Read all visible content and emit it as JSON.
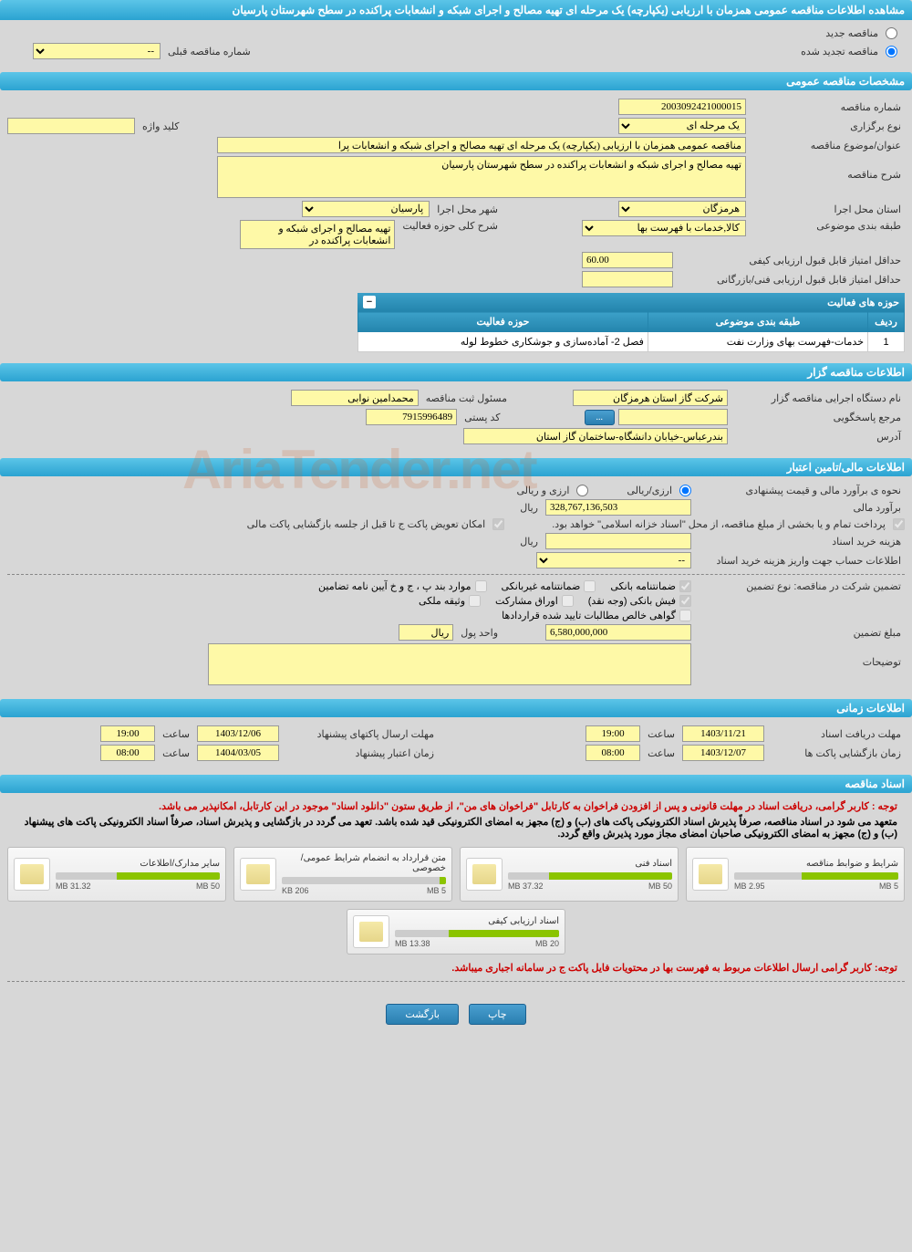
{
  "header": {
    "title": "مشاهده اطلاعات مناقصه عمومی همزمان با ارزیابی (یکپارچه) یک مرحله ای تهیه مصالح و اجرای شبکه و انشعابات پراکنده در سطح شهرستان پارسیان"
  },
  "tender_mode": {
    "new_label": "مناقصه جدید",
    "renewed_label": "مناقصه تجدید شده",
    "prev_number_label": "شماره مناقصه قبلی",
    "prev_number_value": "--"
  },
  "general": {
    "section_title": "مشخصات مناقصه عمومی",
    "tender_number_label": "شماره مناقصه",
    "tender_number": "2003092421000015",
    "hold_type_label": "نوع برگزاری",
    "hold_type": "یک مرحله ای",
    "keyword_label": "کلید واژه",
    "keyword": "",
    "subject_label": "عنوان/موضوع مناقصه",
    "subject": "مناقصه عمومی همزمان با ارزیابی (یکپارچه) یک مرحله ای تهیه مصالح و اجرای شبکه و انشعابات پرا",
    "desc_label": "شرح مناقصه",
    "desc": "تهیه مصالح و اجرای شبکه و انشعابات پراکنده در سطح شهرستان پارسیان",
    "province_label": "استان محل اجرا",
    "province": "هرمزگان",
    "city_label": "شهر محل اجرا",
    "city": "پارسیان",
    "category_label": "طبقه بندی موضوعی",
    "category": "کالا,خدمات با فهرست بها",
    "activity_desc_label": "شرح کلی حوزه فعالیت",
    "activity_desc": "تهیه مصالح و اجرای شبکه و انشعابات پراکنده در",
    "min_quality_label": "حداقل امتیاز قابل قبول ارزیابی کیفی",
    "min_quality": "60.00",
    "min_tech_label": "حداقل امتیاز قابل قبول ارزیابی فنی/بازرگانی",
    "min_tech": "",
    "activities_title": "حوزه های فعالیت",
    "activities_cols": {
      "row": "ردیف",
      "cat": "طبقه بندی موضوعی",
      "area": "حوزه فعالیت"
    },
    "activities_rows": [
      {
        "n": "1",
        "cat": "خدمات-فهرست بهای وزارت نفت",
        "area": "فصل 2- آماده‌سازی و جوشکاری خطوط لوله"
      }
    ]
  },
  "org": {
    "section_title": "اطلاعات مناقصه گزار",
    "org_name_label": "نام دستگاه اجرایی مناقصه گزار",
    "org_name": "شرکت گاز استان هرمزگان",
    "registrar_label": "مسئول ثبت مناقصه",
    "registrar": "محمدامین نوابی",
    "accountability_label": "مرجع پاسخگویی",
    "accountability": "",
    "postal_label": "کد پستی",
    "postal": "7915996489",
    "address_label": "آدرس",
    "address": "بندرعباس-خیابان دانشگاه-ساختمان گاز استان",
    "more_btn": "..."
  },
  "financial": {
    "section_title": "اطلاعات مالی/تامین اعتبار",
    "price_method_label": "نحوه ی برآورد مالی و قیمت پیشنهادی",
    "opt_rial": "ارزی/ریالی",
    "opt_other": "ارزی و ریالی",
    "estimate_label": "برآورد مالی",
    "estimate": "328,767,136,503",
    "estimate_unit": "ریال",
    "payment_note": "پرداخت تمام و یا بخشی از مبلغ مناقصه، از محل \"اسناد خزانه اسلامی\" خواهد بود.",
    "swap_note": "امکان تعویض پاکت ج تا قبل از جلسه بازگشایی پاکت مالی",
    "doc_cost_label": "هزینه خرید اسناد",
    "doc_cost_unit": "ریال",
    "account_label": "اطلاعات حساب جهت واریز هزینه خرید اسناد",
    "account_value": "--",
    "guarantee_type_label": "تضمین شرکت در مناقصه:   نوع تضمین",
    "chk_bank_guarantee": "ضمانتنامه بانکی",
    "chk_nonbank": "ضمانتنامه غیربانکی",
    "chk_clauses": "موارد بند پ ، ج و خ آیین نامه تضامین",
    "chk_fish": "فیش بانکی (وجه نقد)",
    "chk_shares": "اوراق مشارکت",
    "chk_property": "وثیقه ملکی",
    "chk_receivables": "گواهی خالص مطالبات تایید شده قراردادها",
    "guarantee_amount_label": "مبلغ تضمین",
    "guarantee_amount": "6,580,000,000",
    "currency_label": "واحد پول",
    "currency": "ریال",
    "notes_label": "توضیحات",
    "notes": ""
  },
  "time": {
    "section_title": "اطلاعات زمانی",
    "receive_deadline_label": "مهلت دریافت اسناد",
    "receive_deadline_date": "1403/11/21",
    "receive_deadline_time": "19:00",
    "time_label": "ساعت",
    "open_label": "زمان بازگشایی پاکت ها",
    "open_date": "1403/12/07",
    "open_time": "08:00",
    "submit_deadline_label": "مهلت ارسال پاکتهای پیشنهاد",
    "submit_deadline_date": "1403/12/06",
    "submit_deadline_time": "19:00",
    "validity_label": "زمان اعتبار پیشنهاد",
    "validity_date": "1404/03/05",
    "validity_time": "08:00"
  },
  "docs": {
    "section_title": "اسناد مناقصه",
    "note1": "توجه : کاربر گرامی، دریافت اسناد در مهلت قانونی و پس از افزودن فراخوان به کارتابل \"فراخوان های من\"، از طریق ستون \"دانلود اسناد\" موجود در این کارتابل، امکانپذیر می باشد.",
    "note2": "متعهد می شود در اسناد مناقصه، صرفاً پذیرش اسناد الکترونیکی پاکت های (ب) و (ج) مجهز به امضای الکترونیکی قید شده باشد. تعهد می گردد در بازگشایی و پذیرش اسناد، صرفاً اسناد الکترونیکی پاکت های پیشنهاد (ب) و (ج) مجهز به امضای الکترونیکی صاحبان امضای مجاز مورد پذیرش واقع گردد.",
    "items": [
      {
        "title": "شرایط و ضوابط مناقصه",
        "used": "2.95 MB",
        "total": "5 MB",
        "pct": 59
      },
      {
        "title": "اسناد فنی",
        "used": "37.32 MB",
        "total": "50 MB",
        "pct": 75
      },
      {
        "title": "متن قرارداد به انضمام شرایط عمومی/خصوصی",
        "used": "206 KB",
        "total": "5 MB",
        "pct": 4
      },
      {
        "title": "سایر مدارک/اطلاعات",
        "used": "31.32 MB",
        "total": "50 MB",
        "pct": 63
      },
      {
        "title": "اسناد ارزیابی کیفی",
        "used": "13.38 MB",
        "total": "20 MB",
        "pct": 67
      }
    ],
    "note3": "توجه: کاربر گرامی ارسال اطلاعات مربوط به فهرست بها در محتویات فایل پاکت ج در سامانه اجباری میباشد."
  },
  "buttons": {
    "print": "چاپ",
    "back": "بازگشت"
  },
  "watermark": "AriaTender.net"
}
